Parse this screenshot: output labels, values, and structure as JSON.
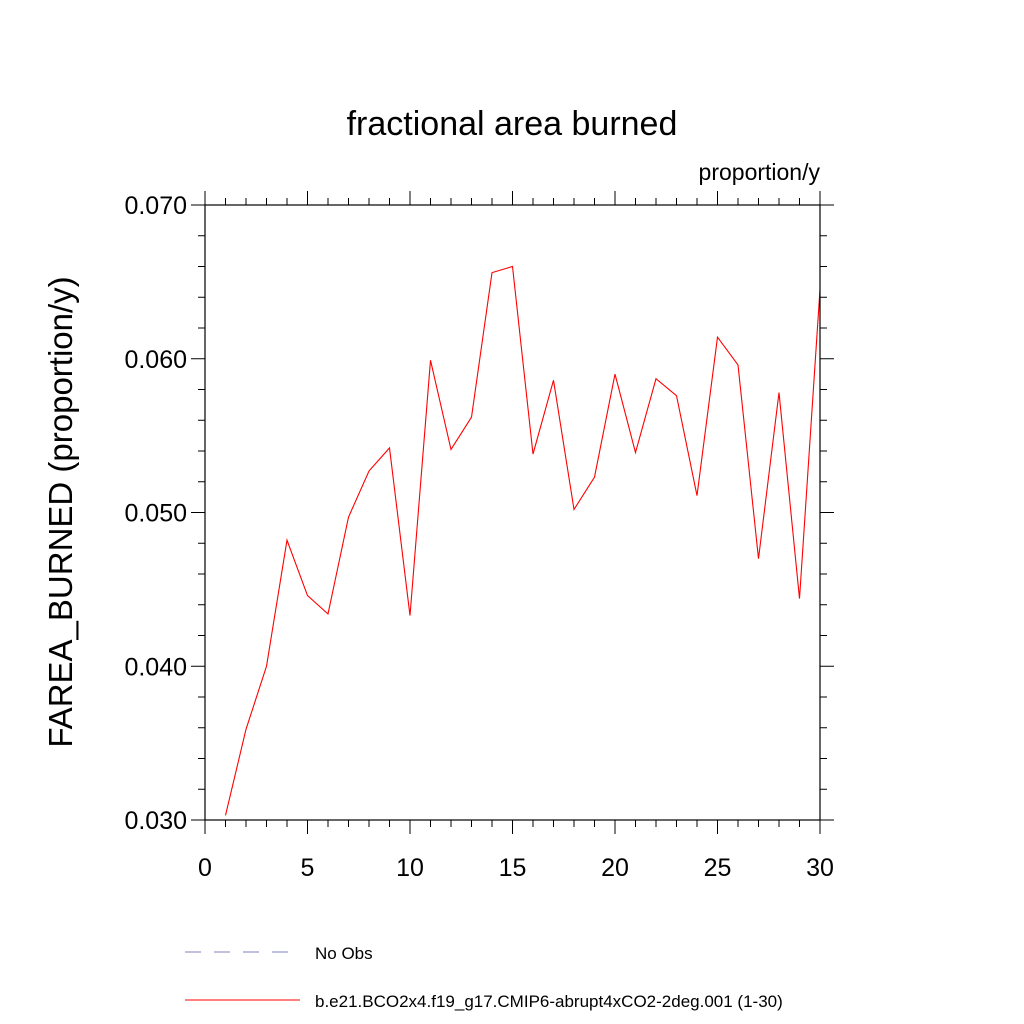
{
  "chart_data": {
    "type": "line",
    "title": "fractional area burned",
    "units_label": "proportion/y",
    "ylabel": "FAREA_BURNED  (proportion/y)",
    "xlabel": "",
    "xlim": [
      0,
      30
    ],
    "ylim": [
      0.03,
      0.07
    ],
    "xticks": [
      "0",
      "5",
      "10",
      "15",
      "20",
      "25",
      "30"
    ],
    "yticks": [
      "0.030",
      "0.040",
      "0.050",
      "0.060",
      "0.070"
    ],
    "grid": false,
    "legend_position": "bottom",
    "x": [
      1,
      2,
      3,
      4,
      5,
      6,
      7,
      8,
      9,
      10,
      11,
      12,
      13,
      14,
      15,
      16,
      17,
      18,
      19,
      20,
      21,
      22,
      23,
      24,
      25,
      26,
      27,
      28,
      29,
      30
    ],
    "series": [
      {
        "name": "b.e21.BCO2x4.f19_g17.CMIP6-abrupt4xCO2-2deg.001 (1-30)",
        "color": "#ff0000",
        "style": "solid",
        "values": [
          0.0303,
          0.0359,
          0.04,
          0.0482,
          0.0446,
          0.0434,
          0.0497,
          0.0527,
          0.0542,
          0.0433,
          0.0599,
          0.0541,
          0.0562,
          0.0656,
          0.066,
          0.0538,
          0.0586,
          0.0502,
          0.0523,
          0.059,
          0.0539,
          0.0587,
          0.0576,
          0.0511,
          0.0614,
          0.0596,
          0.047,
          0.0578,
          0.0444,
          0.0645
        ]
      }
    ],
    "legend": [
      {
        "label": "No Obs",
        "color": "#8080c0",
        "style": "dashed"
      },
      {
        "label": "b.e21.BCO2x4.f19_g17.CMIP6-abrupt4xCO2-2deg.001 (1-30)",
        "color": "#ff0000",
        "style": "solid"
      }
    ]
  }
}
